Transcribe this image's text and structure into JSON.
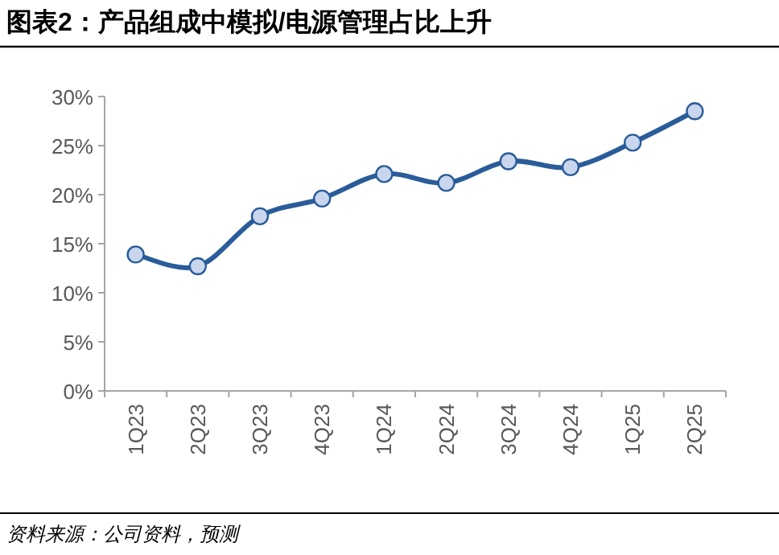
{
  "chart_data": {
    "type": "line",
    "title": "图表2：产品组成中模拟/电源管理占比上升",
    "categories": [
      "1Q23",
      "2Q23",
      "3Q23",
      "4Q23",
      "1Q24",
      "2Q24",
      "3Q24",
      "4Q24",
      "1Q25",
      "2Q25"
    ],
    "series": [
      {
        "color": "#2a5c9a",
        "values": [
          13.9,
          12.7,
          17.8,
          19.6,
          22.1,
          21.2,
          23.4,
          22.8,
          25.3,
          28.5
        ]
      }
    ],
    "ylim": [
      0,
      30
    ],
    "yticks": [
      {
        "value": 0,
        "label": "0%"
      },
      {
        "value": 5,
        "label": "5%"
      },
      {
        "value": 10,
        "label": "10%"
      },
      {
        "value": 15,
        "label": "15%"
      },
      {
        "value": 20,
        "label": "20%"
      },
      {
        "value": 25,
        "label": "25%"
      },
      {
        "value": 30,
        "label": "30%"
      }
    ],
    "marker": "circle",
    "line_style": "solid",
    "annotations": [
      "资料来源：公司资料，预测"
    ]
  }
}
